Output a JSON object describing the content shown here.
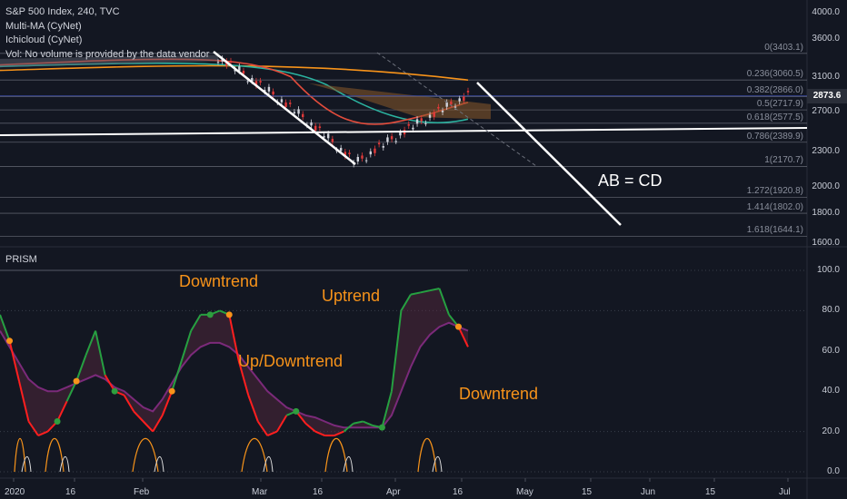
{
  "legend": {
    "symbol_line": "S&P 500 Index, 240, TVC",
    "indicator_1": "Multi-MA (CyNet)",
    "indicator_2": "Ichicloud (CyNet)",
    "volume_note": "Vol: No volume is provided by the data vendor"
  },
  "prism_label": "PRISM",
  "annotations": {
    "downtrend_top": "Downtrend",
    "uptrend": "Uptrend",
    "up_downtrend": "Up/Downtrend",
    "downtrend_right": "Downtrend",
    "pattern": "AB = CD"
  },
  "last_price": "2873.6",
  "colors": {
    "background": "#131722",
    "up_line": "#26a041",
    "down_line": "#ff1f1f",
    "signal_line": "#7b2a7a",
    "orange": "#f7931a",
    "dot_orange": "#f7931a",
    "dot_green": "#2e9e3e"
  },
  "chart_data": [
    {
      "type": "line",
      "title": "S&P 500 Index, 240, TVC",
      "y_axis_ticks": [
        "4000.0",
        "3600.0",
        "3100.0",
        "2700.0",
        "2300.0",
        "2000.0",
        "1800.0",
        "1600.0"
      ],
      "x_axis_ticks": [
        "2020",
        "16",
        "Feb",
        "Mar",
        "16",
        "Apr",
        "16",
        "May",
        "15",
        "Jun",
        "15",
        "Jul"
      ],
      "fib_levels": [
        {
          "label": "0(3403.1)",
          "value": 3403.1
        },
        {
          "label": "0.236(3060.5)",
          "value": 3060.5
        },
        {
          "label": "0.382(2866.0)",
          "value": 2866.0
        },
        {
          "label": "0.5(2717.9)",
          "value": 2717.9
        },
        {
          "label": "0.618(2577.5)",
          "value": 2577.5
        },
        {
          "label": "0.786(2389.9)",
          "value": 2389.9
        },
        {
          "label": "1(2170.7)",
          "value": 2170.7
        },
        {
          "label": "1.272(1920.8)",
          "value": 1920.8
        },
        {
          "label": "1.414(1802.0)",
          "value": 1802.0
        },
        {
          "label": "1.618(1644.1)",
          "value": 1644.1
        }
      ],
      "price_series": [
        3230,
        3260,
        3290,
        3320,
        3335,
        3340,
        3370,
        3380,
        3386,
        3340,
        3200,
        3000,
        3080,
        2960,
        2750,
        2450,
        2380,
        2300,
        2250,
        2200,
        2450,
        2500,
        2520,
        2620,
        2650,
        2750,
        2800,
        2850,
        2870,
        2874
      ],
      "last_price": 2873.6
    },
    {
      "type": "line",
      "title": "PRISM",
      "y_axis_ticks": [
        "100.0",
        "80.0",
        "60.0",
        "40.0",
        "20.0",
        "0.0"
      ],
      "ylim": [
        0,
        100
      ],
      "prism": [
        78,
        65,
        45,
        25,
        18,
        20,
        25,
        35,
        45,
        58,
        70,
        48,
        40,
        38,
        30,
        25,
        20,
        28,
        40,
        55,
        70,
        78,
        78,
        80,
        78,
        55,
        38,
        25,
        18,
        20,
        28,
        30,
        24,
        20,
        18,
        18,
        20,
        24,
        25,
        23,
        22,
        40,
        80,
        88,
        89,
        90,
        91,
        78,
        72,
        62
      ],
      "signal": [
        70,
        62,
        54,
        46,
        42,
        40,
        40,
        42,
        44,
        46,
        48,
        46,
        42,
        40,
        36,
        32,
        30,
        36,
        44,
        52,
        58,
        62,
        64,
        64,
        62,
        58,
        52,
        46,
        40,
        36,
        32,
        30,
        28,
        27,
        25,
        23,
        22,
        22,
        22,
        22,
        22,
        28,
        40,
        52,
        62,
        68,
        72,
        74,
        72,
        70
      ]
    }
  ]
}
